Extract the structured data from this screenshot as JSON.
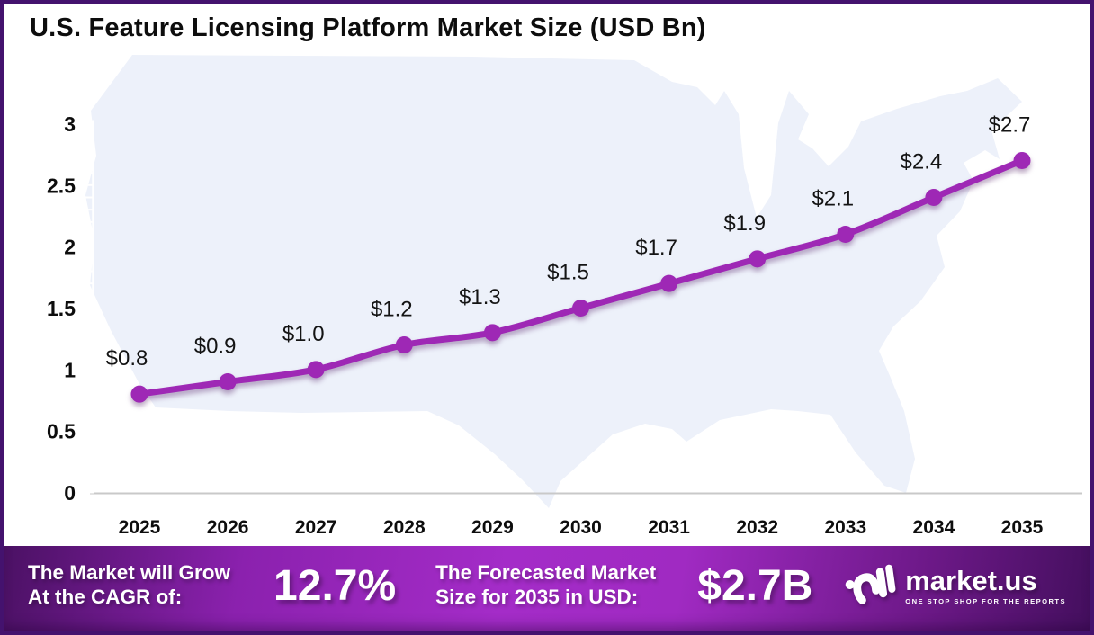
{
  "title": "U.S. Feature Licensing Platform Market Size (USD Bn)",
  "chart_data": {
    "type": "line",
    "title": "U.S. Feature Licensing Platform Market Size (USD Bn)",
    "x": [
      2025,
      2026,
      2027,
      2028,
      2029,
      2030,
      2031,
      2032,
      2033,
      2034,
      2035
    ],
    "series": [
      {
        "name": "U.S. Feature Licensing Platform Market Size (USD Bn)",
        "values": [
          0.8,
          0.9,
          1.0,
          1.2,
          1.3,
          1.5,
          1.7,
          1.9,
          2.1,
          2.4,
          2.7
        ]
      }
    ],
    "point_labels": [
      "$0.8",
      "$0.9",
      "$1.0",
      "$1.2",
      "$1.3",
      "$1.5",
      "$1.7",
      "$1.9",
      "$2.1",
      "$2.4",
      "$2.7"
    ],
    "xlabel": "",
    "ylabel": "",
    "ylim": [
      0,
      3
    ],
    "yticks": [
      0,
      0.5,
      1,
      1.5,
      2,
      2.5,
      3
    ],
    "ytick_labels": [
      "0",
      "0.5",
      "1",
      "1.5",
      "2",
      "2.5",
      "3"
    ],
    "grid": false,
    "legend_position": "none",
    "line_color": "#9e28b5",
    "marker_color": "#9e28b5",
    "axis_color": "#ffffff",
    "xaxis_line_color": "#c9c9c9",
    "background": "us-map-silhouette",
    "map_color": "#edf1fa"
  },
  "banner": {
    "grow_line1": "The Market will Grow",
    "grow_line2": "At the CAGR of:",
    "cagr_value": "12.7%",
    "forecast_line1": "The Forecasted Market",
    "forecast_line2": "Size for 2035 in USD:",
    "forecast_value": "$2.7B",
    "logo_name": "market.us",
    "logo_tagline": "ONE STOP SHOP FOR THE REPORTS"
  },
  "colors": {
    "frame_border": "#44126e",
    "banner_gradient_mid": "#a42cc8",
    "banner_gradient_edge": "#4b1164"
  }
}
